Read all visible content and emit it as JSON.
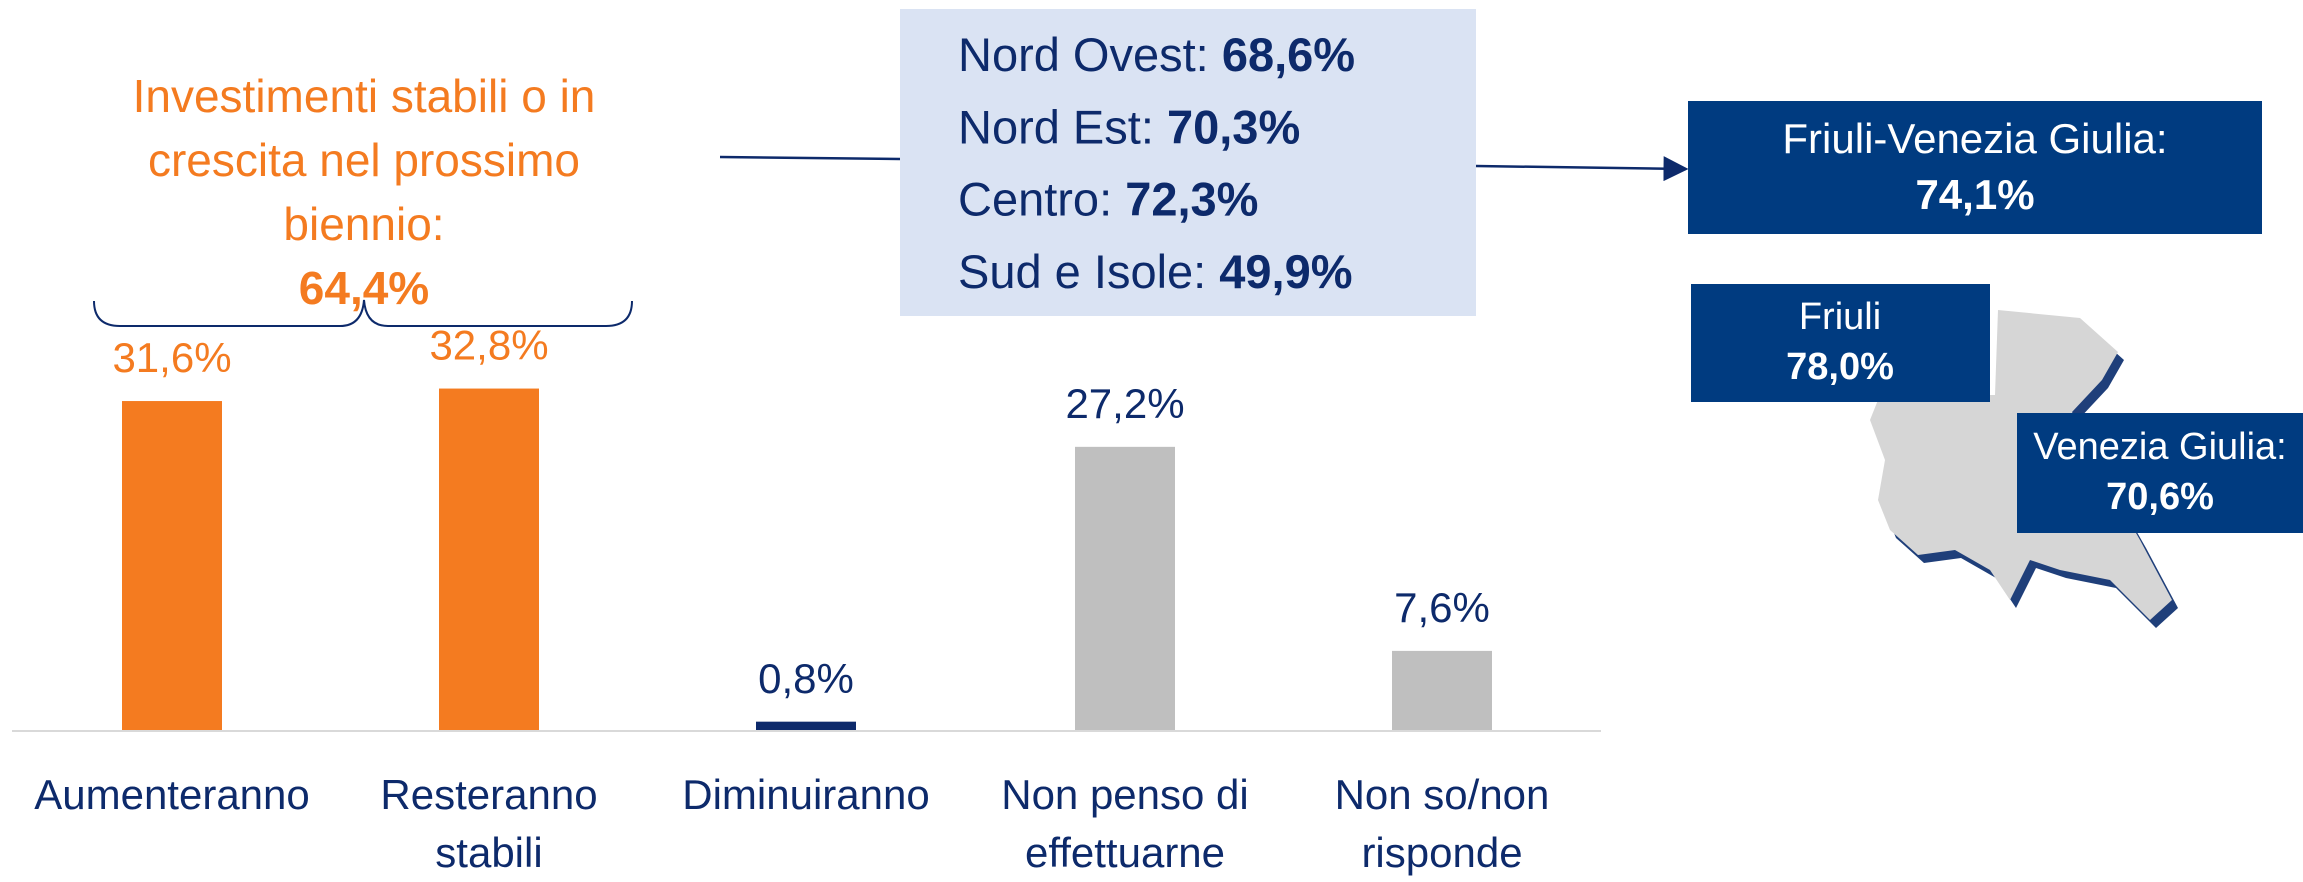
{
  "chart_data": {
    "type": "bar",
    "categories": [
      "Aumenteranno",
      "Resteranno stabili",
      "Diminuiranno",
      "Non penso di effettuarne",
      "Non so/non risponde"
    ],
    "values": [
      31.6,
      32.8,
      0.8,
      27.2,
      7.6
    ],
    "value_labels": [
      "31,6%",
      "32,8%",
      "0,8%",
      "27,2%",
      "7,6%"
    ],
    "colors": [
      "#f47b20",
      "#f47b20",
      "#0d2a6b",
      "#bfbfbf",
      "#bfbfbf"
    ],
    "label_colors": [
      "#f47b20",
      "#f47b20",
      "#0d2a6b",
      "#0d2a6b",
      "#0d2a6b"
    ],
    "annotation": {
      "text": "Investimenti stabili o in crescita nel prossimo biennio:",
      "value": "64,4%"
    },
    "regions": [
      {
        "name": "Nord Ovest:",
        "value": "68,6%"
      },
      {
        "name": "Nord Est:",
        "value": "70,3%"
      },
      {
        "name": "Centro:",
        "value": "72,3%"
      },
      {
        "name": "Sud e Isole:",
        "value": "49,9%"
      }
    ],
    "fvg": {
      "name": "Friuli-Venezia Giulia:",
      "value": "74,1%"
    },
    "friuli": {
      "name": "Friuli",
      "value": "78,0%"
    },
    "venezia_giulia": {
      "name": "Venezia Giulia:",
      "value": "70,6%"
    }
  }
}
